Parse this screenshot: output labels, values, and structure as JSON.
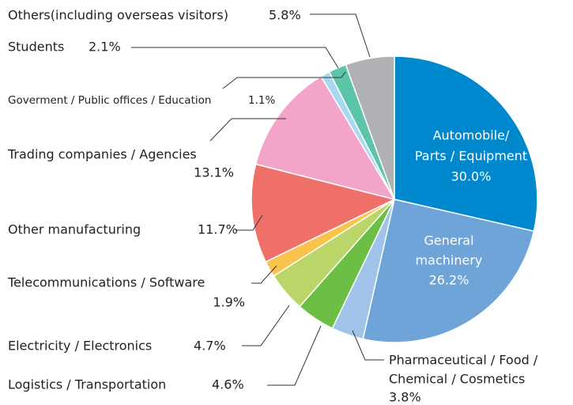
{
  "chart_data": {
    "type": "pie",
    "categories": [
      [
        "Automobile/",
        "Parts / Equipment"
      ],
      [
        "General",
        "machinery"
      ],
      [
        "Pharmaceutical / Food /",
        "Chemical / Cosmetics"
      ],
      [
        "Logistics / Transportation"
      ],
      [
        "Electricity / Electronics"
      ],
      [
        "Telecommunications / Software"
      ],
      [
        "Other manufacturing"
      ],
      [
        "Trading companies / Agencies"
      ],
      [
        "Goverment / Public offices / Education"
      ],
      [
        "Students"
      ],
      [
        "Others(including overseas visitors)"
      ]
    ],
    "values": [
      30.0,
      26.2,
      3.8,
      4.6,
      4.7,
      1.9,
      11.7,
      13.1,
      1.1,
      2.1,
      5.8
    ],
    "value_labels": [
      "30.0%",
      "26.2%",
      "3.8%",
      "4.6%",
      "4.7%",
      "1.9%",
      "11.7%",
      "13.1%",
      "1.1%",
      "2.1%",
      "5.8%"
    ],
    "colors": [
      "#0088cf",
      "#6fa4d9",
      "#a0c4e9",
      "#6cbe45",
      "#bad668",
      "#fac34c",
      "#ef6f69",
      "#f3a5c9",
      "#a9d9f2",
      "#5bc4a9",
      "#b1b1b5"
    ]
  }
}
